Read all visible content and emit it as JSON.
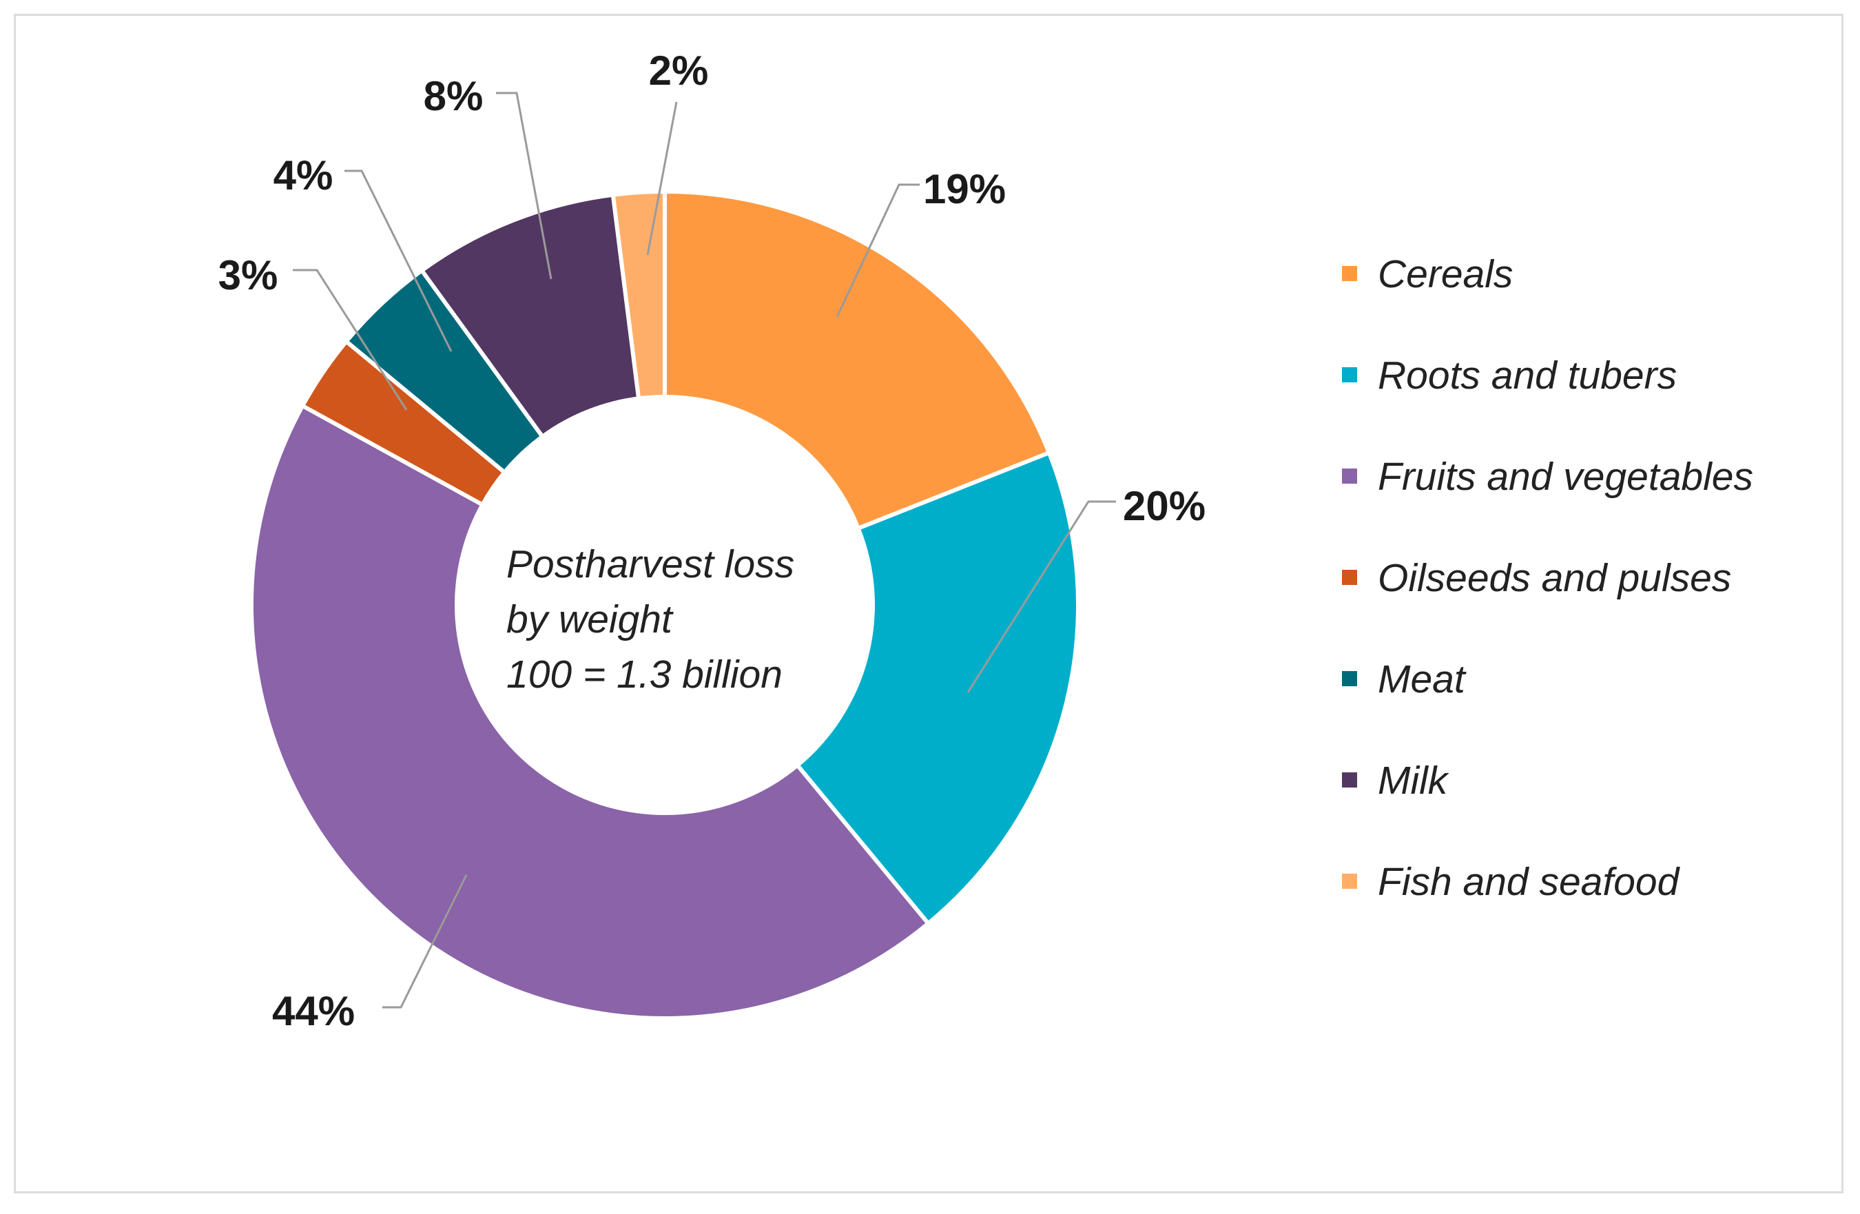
{
  "chart_data": {
    "type": "pie",
    "variant": "donut",
    "center_label": [
      "Postharvest loss",
      "by weight",
      "100 = 1.3 billion"
    ],
    "slices": [
      {
        "name": "Cereals",
        "value": 19,
        "label": "19%",
        "color": "#FF9940"
      },
      {
        "name": "Roots and tubers",
        "value": 20,
        "label": "20%",
        "color": "#00AECA"
      },
      {
        "name": "Fruits and vegetables",
        "value": 44,
        "label": "44%",
        "color": "#8A63A8"
      },
      {
        "name": "Oilseeds and pulses",
        "value": 3,
        "label": "3%",
        "color": "#D0561B"
      },
      {
        "name": "Meat",
        "value": 4,
        "label": "4%",
        "color": "#006A7B"
      },
      {
        "name": "Milk",
        "value": 8,
        "label": "8%",
        "color": "#513761"
      },
      {
        "name": "Fish and seafood",
        "value": 2,
        "label": "2%",
        "color": "#FFAE69"
      }
    ],
    "legend_position": "right"
  }
}
